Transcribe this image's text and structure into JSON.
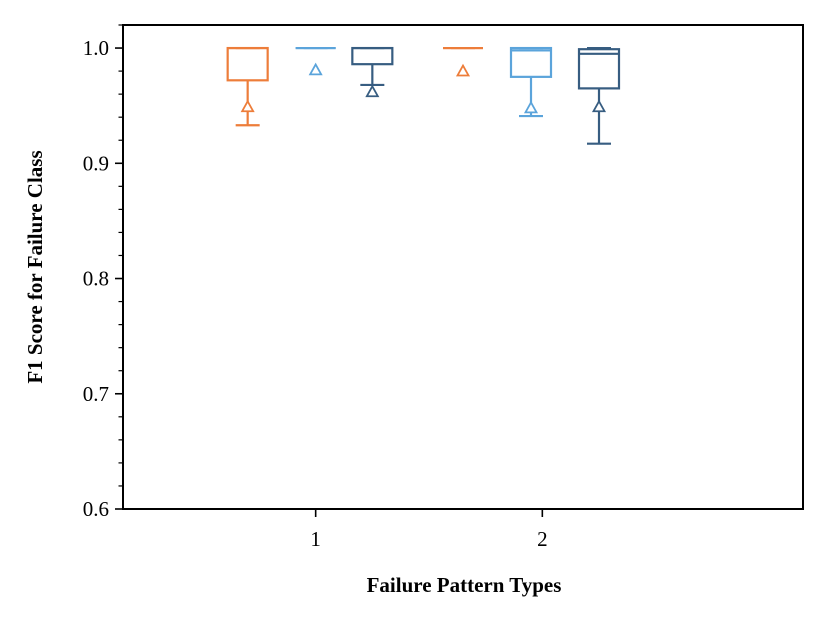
{
  "chart_data": {
    "type": "box",
    "xlabel": "Failure Pattern Types",
    "ylabel": "F1 Score for Failure Class",
    "ylim": [
      0.6,
      1.02
    ],
    "yticks": [
      "0.6",
      "0.7",
      "0.8",
      "0.9",
      "1.0"
    ],
    "categories": [
      "1",
      "2"
    ],
    "xlim": [
      0.15,
      3.15
    ],
    "mean_marker": "triangle",
    "legend": "none",
    "grid": false,
    "series": [
      {
        "color": "#ED7D3A",
        "boxes": [
          {
            "x": 0.7,
            "whislo": 0.933,
            "q1": 0.972,
            "med": 1.0,
            "q3": 1.0,
            "whishi": 1.0,
            "mean": 0.949
          },
          {
            "x": 1.65,
            "whislo": 1.0,
            "q1": 1.0,
            "med": 1.0,
            "q3": 1.0,
            "whishi": 1.0,
            "mean": 0.98
          }
        ]
      },
      {
        "color": "#5BA4DB",
        "boxes": [
          {
            "x": 1.0,
            "whislo": 1.0,
            "q1": 1.0,
            "med": 1.0,
            "q3": 1.0,
            "whishi": 1.0,
            "mean": 0.981
          },
          {
            "x": 1.95,
            "whislo": 0.941,
            "q1": 0.975,
            "med": 0.998,
            "q3": 1.0,
            "whishi": 1.0,
            "mean": 0.948
          }
        ]
      },
      {
        "color": "#375D81",
        "boxes": [
          {
            "x": 1.25,
            "whislo": 0.968,
            "q1": 0.986,
            "med": 1.0,
            "q3": 1.0,
            "whishi": 1.0,
            "mean": 0.962
          },
          {
            "x": 2.25,
            "whislo": 0.917,
            "q1": 0.965,
            "med": 0.995,
            "q3": 0.999,
            "whishi": 1.0,
            "mean": 0.949
          }
        ]
      }
    ]
  }
}
